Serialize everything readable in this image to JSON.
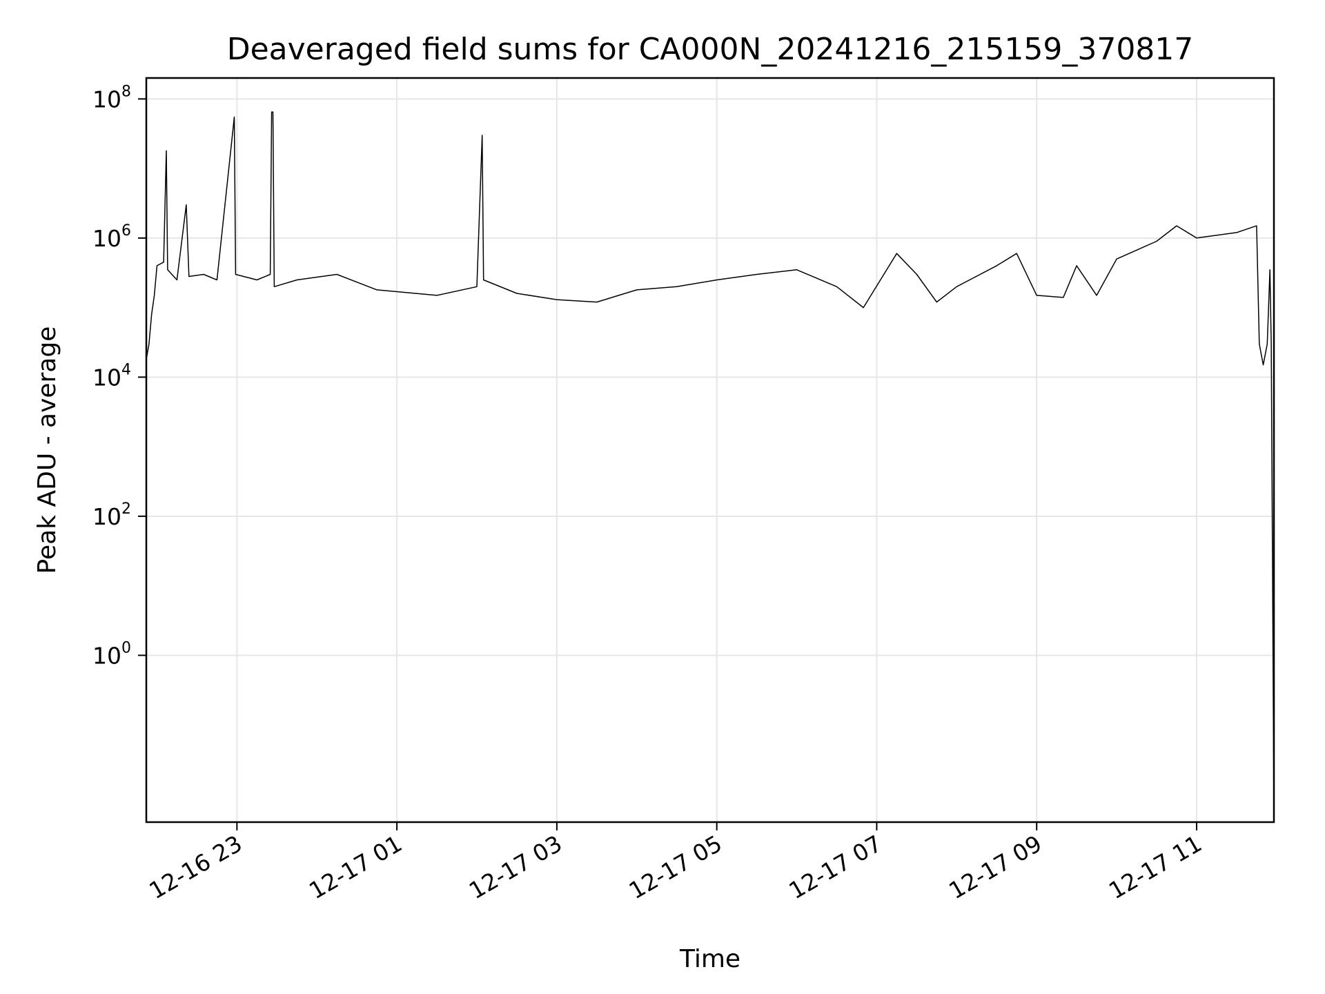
{
  "chart_data": {
    "type": "line",
    "title": "Deaveraged field sums for CA000N_20241216_215159_370817",
    "xlabel": "Time",
    "ylabel": "Peak ADU - average",
    "x_scale": "time",
    "x_range": [
      "2024-12-16 21:52",
      "2024-12-17 11:58"
    ],
    "x_ticks": [
      "12-16 23",
      "12-17 01",
      "12-17 03",
      "12-17 05",
      "12-17 07",
      "12-17 09",
      "12-17 11"
    ],
    "x_tick_times": [
      "2024-12-16 23:00",
      "2024-12-17 01:00",
      "2024-12-17 03:00",
      "2024-12-17 05:00",
      "2024-12-17 07:00",
      "2024-12-17 09:00",
      "2024-12-17 11:00"
    ],
    "y_scale": "log",
    "ylim": [
      0.004,
      200000000
    ],
    "y_ticks": [
      {
        "base": "10",
        "exp": "0",
        "value": 1
      },
      {
        "base": "10",
        "exp": "2",
        "value": 100
      },
      {
        "base": "10",
        "exp": "4",
        "value": 10000
      },
      {
        "base": "10",
        "exp": "6",
        "value": 1000000
      },
      {
        "base": "10",
        "exp": "8",
        "value": 100000000
      }
    ],
    "grid": true,
    "line_color": "#000000",
    "grid_color": "#e6e6e6",
    "series": [
      {
        "points": [
          [
            "2024-12-16 21:52",
            18000
          ],
          [
            "2024-12-16 21:54",
            30000
          ],
          [
            "2024-12-16 21:56",
            80000
          ],
          [
            "2024-12-16 21:58",
            150000
          ],
          [
            "2024-12-16 22:00",
            400000
          ],
          [
            "2024-12-16 22:05",
            450000
          ],
          [
            "2024-12-16 22:07",
            18000000
          ],
          [
            "2024-12-16 22:08",
            350000
          ],
          [
            "2024-12-16 22:15",
            250000
          ],
          [
            "2024-12-16 22:22",
            3000000
          ],
          [
            "2024-12-16 22:24",
            280000
          ],
          [
            "2024-12-16 22:35",
            300000
          ],
          [
            "2024-12-16 22:45",
            250000
          ],
          [
            "2024-12-16 22:58",
            55000000
          ],
          [
            "2024-12-16 22:59",
            300000
          ],
          [
            "2024-12-16 23:15",
            250000
          ],
          [
            "2024-12-16 23:25",
            300000
          ],
          [
            "2024-12-16 23:26",
            65000000
          ],
          [
            "2024-12-16 23:27",
            65000000
          ],
          [
            "2024-12-16 23:28",
            200000
          ],
          [
            "2024-12-16 23:45",
            250000
          ],
          [
            "2024-12-17 00:15",
            300000
          ],
          [
            "2024-12-17 00:45",
            180000
          ],
          [
            "2024-12-17 01:30",
            150000
          ],
          [
            "2024-12-17 02:00",
            200000
          ],
          [
            "2024-12-17 02:04",
            30000000
          ],
          [
            "2024-12-17 02:05",
            250000
          ],
          [
            "2024-12-17 02:30",
            160000
          ],
          [
            "2024-12-17 03:00",
            130000
          ],
          [
            "2024-12-17 03:30",
            120000
          ],
          [
            "2024-12-17 04:00",
            180000
          ],
          [
            "2024-12-17 04:30",
            200000
          ],
          [
            "2024-12-17 05:00",
            250000
          ],
          [
            "2024-12-17 05:30",
            300000
          ],
          [
            "2024-12-17 06:00",
            350000
          ],
          [
            "2024-12-17 06:30",
            200000
          ],
          [
            "2024-12-17 06:50",
            100000
          ],
          [
            "2024-12-17 07:15",
            600000
          ],
          [
            "2024-12-17 07:30",
            300000
          ],
          [
            "2024-12-17 07:45",
            120000
          ],
          [
            "2024-12-17 08:00",
            200000
          ],
          [
            "2024-12-17 08:30",
            400000
          ],
          [
            "2024-12-17 08:45",
            600000
          ],
          [
            "2024-12-17 09:00",
            150000
          ],
          [
            "2024-12-17 09:20",
            140000
          ],
          [
            "2024-12-17 09:30",
            400000
          ],
          [
            "2024-12-17 09:45",
            150000
          ],
          [
            "2024-12-17 10:00",
            500000
          ],
          [
            "2024-12-17 10:30",
            900000
          ],
          [
            "2024-12-17 10:45",
            1500000
          ],
          [
            "2024-12-17 11:00",
            1000000
          ],
          [
            "2024-12-17 11:30",
            1200000
          ],
          [
            "2024-12-17 11:45",
            1500000
          ],
          [
            "2024-12-17 11:47",
            30000
          ],
          [
            "2024-12-17 11:50",
            15000
          ],
          [
            "2024-12-17 11:53",
            30000
          ],
          [
            "2024-12-17 11:55",
            350000
          ],
          [
            "2024-12-17 11:56",
            30000
          ],
          [
            "2024-12-17 11:58",
            0.005
          ]
        ]
      }
    ]
  }
}
